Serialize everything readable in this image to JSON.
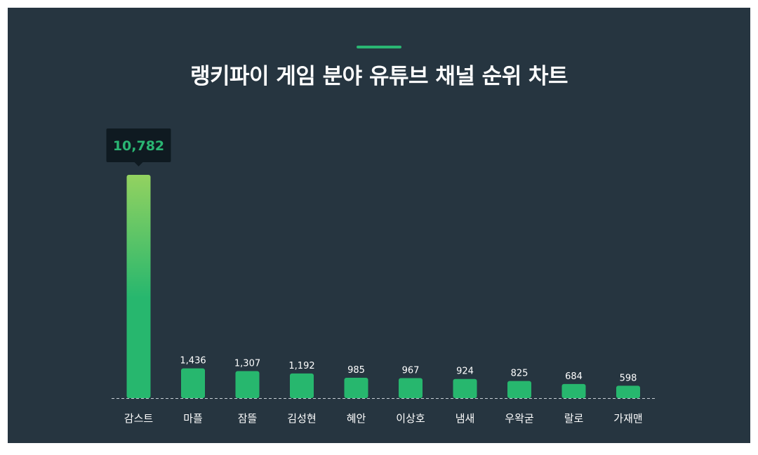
{
  "colors": {
    "background": "#263540",
    "accent": "#2ab673",
    "bar": "#27b76e",
    "bar_highlight_top": "#93d260",
    "tooltip_bg": "#0f1a21",
    "text": "#ffffff",
    "baseline": "#c8d0d6"
  },
  "chart_data": {
    "type": "bar",
    "title": "랭키파이 게임 분야 유튜브 채널 순위 차트",
    "xlabel": "",
    "ylabel": "",
    "categories": [
      "감스트",
      "마플",
      "잠뜰",
      "김성현",
      "혜안",
      "이상호",
      "냄새",
      "우왁굳",
      "랄로",
      "가재맨"
    ],
    "values": [
      10782,
      1436,
      1307,
      1192,
      985,
      967,
      924,
      825,
      684,
      598
    ],
    "value_labels": [
      "10,782",
      "1,436",
      "1,307",
      "1,192",
      "985",
      "967",
      "924",
      "825",
      "684",
      "598"
    ],
    "highlight_index": 0,
    "grid": false,
    "legend": "none"
  }
}
